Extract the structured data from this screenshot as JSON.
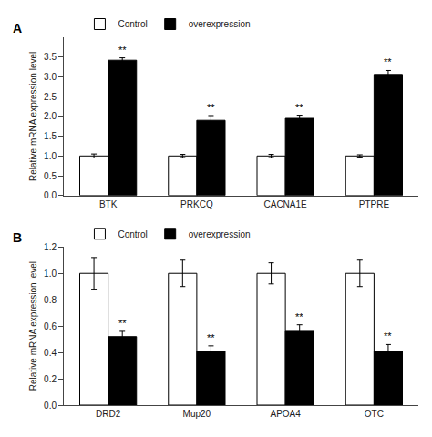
{
  "chart_data": [
    {
      "type": "bar",
      "title": "A",
      "categories": [
        "BTK",
        "PRKCQ",
        "CACNA1E",
        "PTPRE"
      ],
      "series": [
        {
          "name": "Control",
          "color": "white",
          "values": [
            1.0,
            1.0,
            1.0,
            1.0
          ],
          "errors": [
            0.05,
            0.04,
            0.04,
            0.03
          ]
        },
        {
          "name": "overexpression",
          "color": "black",
          "values": [
            3.42,
            1.9,
            1.95,
            3.06
          ],
          "errors": [
            0.06,
            0.12,
            0.08,
            0.1
          ]
        }
      ],
      "ylabel": "Relative mRNA expression level",
      "ylim": [
        0,
        4.0
      ],
      "yticks": [
        {
          "value": 0,
          "label": "0.0"
        },
        0.5,
        {
          "value": 1,
          "label": "1.0"
        },
        1.5,
        {
          "value": 2,
          "label": "2.0"
        },
        2.5,
        {
          "value": 3,
          "label": "3.0"
        },
        3.5
      ],
      "annotations": [
        {
          "category": "BTK",
          "series": "overexpression",
          "text": "**"
        },
        {
          "category": "PRKCQ",
          "series": "overexpression",
          "text": "**"
        },
        {
          "category": "CACNA1E",
          "series": "overexpression",
          "text": "**"
        },
        {
          "category": "PTPRE",
          "series": "overexpression",
          "text": "**"
        }
      ],
      "legend": "upper left",
      "grid": false
    },
    {
      "type": "bar",
      "title": "B",
      "categories": [
        "DRD2",
        "Mup20",
        "APOA4",
        "OTC"
      ],
      "series": [
        {
          "name": "Control",
          "color": "white",
          "values": [
            1.0,
            1.0,
            1.0,
            1.0
          ],
          "errors": [
            0.12,
            0.1,
            0.08,
            0.1
          ]
        },
        {
          "name": "overexpression",
          "color": "black",
          "values": [
            0.52,
            0.41,
            0.56,
            0.41
          ],
          "errors": [
            0.04,
            0.04,
            0.05,
            0.05
          ]
        }
      ],
      "ylabel": "Relative mRNA expression level",
      "ylim": [
        0,
        1.2
      ],
      "yticks": [
        {
          "value": 0,
          "label": "0.0"
        },
        0.2,
        0.4,
        0.6,
        0.8,
        {
          "value": 1,
          "label": "1.0"
        },
        1.2
      ],
      "annotations": [
        {
          "category": "DRD2",
          "series": "overexpression",
          "text": "**"
        },
        {
          "category": "Mup20",
          "series": "overexpression",
          "text": "**"
        },
        {
          "category": "APOA4",
          "series": "overexpression",
          "text": "**"
        },
        {
          "category": "OTC",
          "series": "overexpression",
          "text": "**"
        }
      ],
      "legend": "upper left",
      "grid": false
    }
  ]
}
